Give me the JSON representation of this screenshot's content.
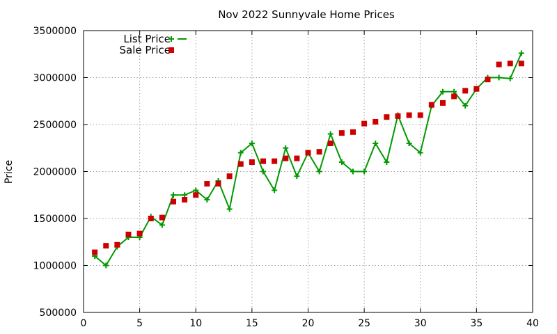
{
  "chart_data": {
    "type": "line",
    "title": "Nov 2022 Sunnyvale Home Prices",
    "xlabel": "",
    "ylabel": "Price",
    "xlim": [
      0,
      40
    ],
    "ylim": [
      500000,
      3500000
    ],
    "xticks": [
      0,
      5,
      10,
      15,
      20,
      25,
      30,
      35,
      40
    ],
    "yticks": [
      500000,
      1000000,
      1500000,
      2000000,
      2500000,
      3000000,
      3500000
    ],
    "grid": true,
    "legend_position": "top-left",
    "series": [
      {
        "name": "List Price",
        "style": "line-with-plus-markers",
        "color": "#009900",
        "x": [
          1,
          2,
          3,
          4,
          5,
          6,
          7,
          8,
          9,
          10,
          11,
          12,
          13,
          14,
          15,
          16,
          17,
          18,
          19,
          20,
          21,
          22,
          23,
          24,
          25,
          26,
          27,
          28,
          29,
          30,
          31,
          32,
          33,
          34,
          35,
          36,
          37,
          38,
          39
        ],
        "values": [
          1100000,
          1000000,
          1200000,
          1300000,
          1300000,
          1520000,
          1430000,
          1750000,
          1750000,
          1800000,
          1700000,
          1900000,
          1600000,
          2200000,
          2300000,
          2000000,
          1800000,
          2250000,
          1950000,
          2200000,
          2000000,
          2400000,
          2100000,
          2000000,
          2000000,
          2300000,
          2100000,
          2600000,
          2300000,
          2200000,
          2700000,
          2850000,
          2850000,
          2700000,
          2880000,
          3000000,
          3000000,
          2990000,
          3260000
        ]
      },
      {
        "name": "Sale Price",
        "style": "square-markers",
        "color": "#cc0000",
        "x": [
          1,
          2,
          3,
          4,
          5,
          6,
          7,
          8,
          9,
          10,
          11,
          12,
          13,
          14,
          15,
          16,
          17,
          18,
          19,
          20,
          21,
          22,
          23,
          24,
          25,
          26,
          27,
          28,
          29,
          30,
          31,
          32,
          33,
          34,
          35,
          36,
          37,
          38,
          39
        ],
        "values": [
          1140000,
          1210000,
          1220000,
          1330000,
          1340000,
          1500000,
          1510000,
          1680000,
          1700000,
          1750000,
          1870000,
          1870000,
          1950000,
          2080000,
          2100000,
          2110000,
          2110000,
          2140000,
          2140000,
          2200000,
          2210000,
          2300000,
          2410000,
          2420000,
          2510000,
          2530000,
          2580000,
          2590000,
          2600000,
          2600000,
          2710000,
          2730000,
          2800000,
          2860000,
          2880000,
          2980000,
          3140000,
          3150000,
          3150000
        ]
      }
    ]
  }
}
